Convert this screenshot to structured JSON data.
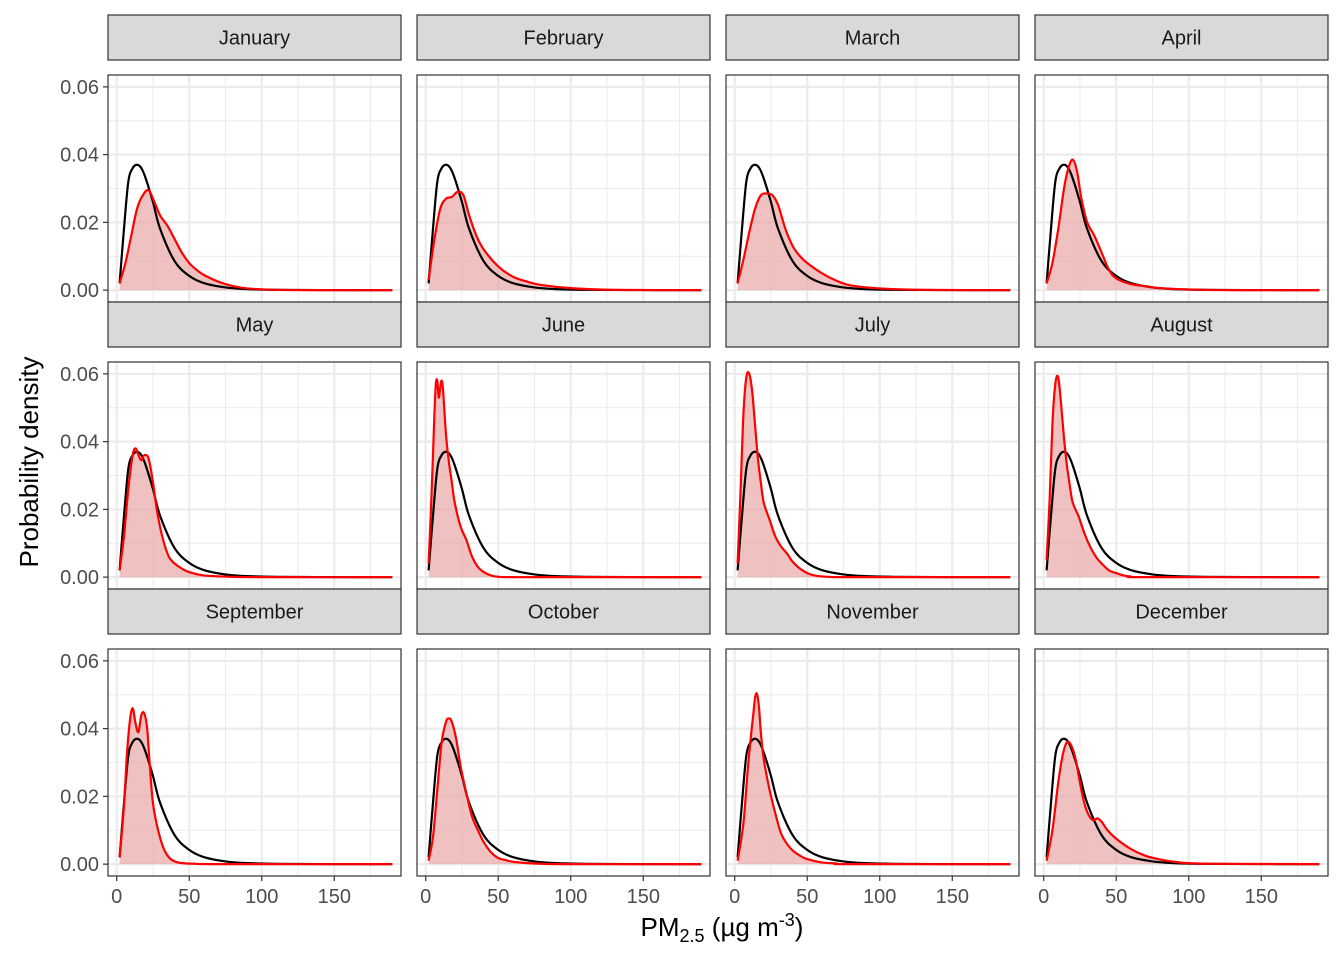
{
  "chart_data": {
    "type": "area",
    "facet_layout": "3 rows x 4 columns",
    "xlabel": {
      "main": "PM",
      "sub": "2.5",
      "unit_pre": " (µg m",
      "unit_sup": "-3",
      "unit_post": ")"
    },
    "ylabel": "Probability density",
    "xlim": [
      -6,
      196
    ],
    "ylim": [
      -0.0035,
      0.0635
    ],
    "x_ticks": [
      0,
      50,
      100,
      150
    ],
    "x_tick_labels": [
      "0",
      "50",
      "100",
      "150"
    ],
    "y_ticks": [
      0,
      0.02,
      0.04,
      0.06
    ],
    "y_tick_labels": [
      "0.00",
      "0.02",
      "0.04",
      "0.06"
    ],
    "grid": true,
    "colors": {
      "reference_line": "#000000",
      "month_line": "#ff0000",
      "month_fill": "#e8a0a0",
      "strip": "#d9d9d9",
      "grid": "#ebebeb"
    },
    "reference_curve": {
      "x": [
        2,
        5,
        8,
        11,
        14,
        17,
        20,
        25,
        30,
        40,
        50,
        60,
        75,
        90,
        110,
        140,
        190
      ],
      "y": [
        0.002,
        0.018,
        0.032,
        0.036,
        0.037,
        0.036,
        0.033,
        0.026,
        0.018,
        0.0085,
        0.0042,
        0.0021,
        0.0008,
        0.0003,
        0.0001,
        3e-05,
        0
      ]
    },
    "panels": [
      {
        "month": "January",
        "x": [
          2,
          6,
          10,
          14,
          18,
          22,
          26,
          30,
          35,
          40,
          45,
          50,
          55,
          60,
          70,
          80,
          90,
          110,
          140,
          190
        ],
        "y": [
          0.002,
          0.008,
          0.016,
          0.024,
          0.028,
          0.0295,
          0.026,
          0.022,
          0.019,
          0.015,
          0.011,
          0.008,
          0.006,
          0.0045,
          0.0025,
          0.0012,
          0.0005,
          0.0001,
          0,
          0
        ]
      },
      {
        "month": "February",
        "x": [
          2,
          6,
          10,
          14,
          18,
          22,
          26,
          30,
          35,
          40,
          50,
          60,
          70,
          80,
          100,
          130,
          190
        ],
        "y": [
          0.003,
          0.015,
          0.024,
          0.027,
          0.0275,
          0.029,
          0.028,
          0.022,
          0.016,
          0.012,
          0.007,
          0.004,
          0.0025,
          0.0015,
          0.0006,
          0.0001,
          0
        ]
      },
      {
        "month": "March",
        "x": [
          2,
          6,
          10,
          14,
          18,
          22,
          26,
          30,
          35,
          40,
          45,
          50,
          60,
          70,
          80,
          100,
          130,
          190
        ],
        "y": [
          0.002,
          0.009,
          0.017,
          0.024,
          0.028,
          0.0285,
          0.028,
          0.025,
          0.018,
          0.013,
          0.01,
          0.008,
          0.005,
          0.0028,
          0.0014,
          0.0005,
          0.0001,
          0
        ]
      },
      {
        "month": "April",
        "x": [
          2,
          6,
          10,
          14,
          17,
          20,
          23,
          26,
          30,
          35,
          40,
          45,
          50,
          60,
          70,
          80,
          100,
          130,
          190
        ],
        "y": [
          0.002,
          0.008,
          0.018,
          0.03,
          0.036,
          0.0385,
          0.035,
          0.027,
          0.02,
          0.016,
          0.011,
          0.006,
          0.0035,
          0.0018,
          0.0012,
          0.0006,
          0.0002,
          0,
          0
        ]
      },
      {
        "month": "May",
        "x": [
          2,
          5,
          8,
          11,
          13,
          15,
          17,
          19,
          22,
          25,
          28,
          32,
          36,
          40,
          45,
          50,
          60,
          80,
          100,
          190
        ],
        "y": [
          0.002,
          0.012,
          0.026,
          0.036,
          0.038,
          0.036,
          0.0345,
          0.036,
          0.035,
          0.028,
          0.019,
          0.011,
          0.006,
          0.004,
          0.0025,
          0.0015,
          0.0005,
          0.0001,
          0,
          0
        ]
      },
      {
        "month": "June",
        "x": [
          2,
          4,
          6,
          7,
          8,
          9,
          10,
          11,
          12,
          14,
          16,
          18,
          20,
          24,
          28,
          32,
          36,
          40,
          45,
          50,
          60,
          80,
          190
        ],
        "y": [
          0.004,
          0.024,
          0.048,
          0.057,
          0.058,
          0.053,
          0.056,
          0.058,
          0.055,
          0.042,
          0.034,
          0.028,
          0.022,
          0.015,
          0.011,
          0.006,
          0.003,
          0.0015,
          0.0005,
          0.0001,
          0,
          0,
          0
        ]
      },
      {
        "month": "July",
        "x": [
          2,
          4,
          6,
          8,
          10,
          12,
          14,
          16,
          18,
          20,
          24,
          28,
          32,
          36,
          40,
          45,
          50,
          55,
          60,
          70,
          80,
          190
        ],
        "y": [
          0.004,
          0.025,
          0.048,
          0.059,
          0.06,
          0.055,
          0.045,
          0.035,
          0.028,
          0.022,
          0.017,
          0.012,
          0.009,
          0.007,
          0.0045,
          0.0025,
          0.0012,
          0.0005,
          0.0002,
          0,
          0,
          0
        ]
      },
      {
        "month": "August",
        "x": [
          2,
          4,
          6,
          8,
          10,
          12,
          14,
          16,
          18,
          20,
          24,
          28,
          32,
          36,
          40,
          45,
          50,
          55,
          60,
          70,
          190
        ],
        "y": [
          0.005,
          0.022,
          0.045,
          0.057,
          0.059,
          0.051,
          0.041,
          0.033,
          0.027,
          0.022,
          0.018,
          0.013,
          0.009,
          0.006,
          0.004,
          0.002,
          0.0012,
          0.0005,
          0.0002,
          0,
          0
        ]
      },
      {
        "month": "September",
        "x": [
          2,
          5,
          7,
          9,
          11,
          13,
          15,
          17,
          19,
          21,
          23,
          25,
          28,
          32,
          36,
          40,
          45,
          55,
          70,
          190
        ],
        "y": [
          0.002,
          0.017,
          0.032,
          0.042,
          0.046,
          0.0415,
          0.039,
          0.044,
          0.0445,
          0.04,
          0.028,
          0.018,
          0.011,
          0.005,
          0.002,
          0.0008,
          0.0003,
          0.0001,
          0,
          0
        ]
      },
      {
        "month": "October",
        "x": [
          2,
          5,
          8,
          11,
          14,
          16,
          18,
          21,
          24,
          28,
          32,
          36,
          40,
          45,
          50,
          55,
          60,
          70,
          80,
          100,
          190
        ],
        "y": [
          0.001,
          0.008,
          0.022,
          0.036,
          0.042,
          0.043,
          0.042,
          0.037,
          0.029,
          0.021,
          0.014,
          0.01,
          0.0065,
          0.0035,
          0.0018,
          0.0012,
          0.0007,
          0.0003,
          0.0001,
          0,
          0
        ]
      },
      {
        "month": "November",
        "x": [
          2,
          6,
          9,
          11,
          13,
          14,
          15,
          16,
          17,
          18,
          20,
          24,
          28,
          32,
          36,
          40,
          45,
          50,
          60,
          70,
          80,
          190
        ],
        "y": [
          0.001,
          0.012,
          0.028,
          0.037,
          0.045,
          0.049,
          0.0505,
          0.049,
          0.045,
          0.039,
          0.031,
          0.022,
          0.015,
          0.009,
          0.006,
          0.004,
          0.0025,
          0.0015,
          0.0005,
          0.0002,
          0,
          0
        ]
      },
      {
        "month": "December",
        "x": [
          2,
          6,
          10,
          13,
          16,
          19,
          22,
          25,
          28,
          31,
          34,
          37,
          40,
          44,
          50,
          60,
          70,
          80,
          90,
          100,
          120,
          190
        ],
        "y": [
          0.001,
          0.01,
          0.024,
          0.032,
          0.036,
          0.035,
          0.031,
          0.024,
          0.018,
          0.0145,
          0.013,
          0.0135,
          0.0125,
          0.01,
          0.0075,
          0.0045,
          0.0025,
          0.0014,
          0.0007,
          0.0003,
          0.0001,
          0
        ]
      }
    ]
  }
}
